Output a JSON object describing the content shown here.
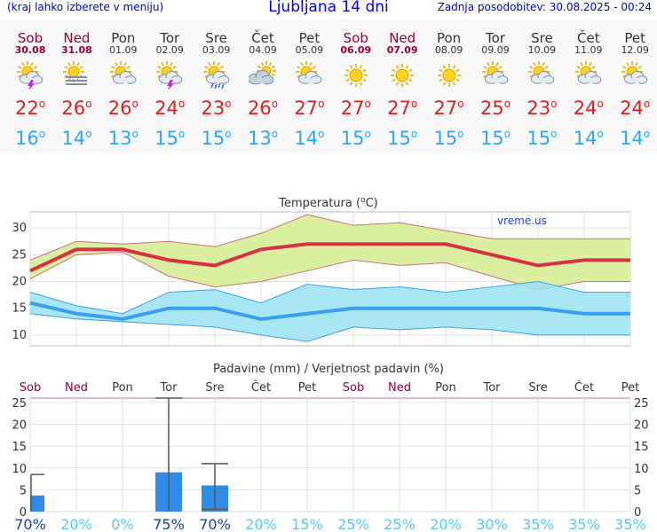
{
  "header": {
    "menu_hint": "(kraj lahko izberete v meniju)",
    "title": "Ljubljana 14 dni",
    "updated": "Zadnja posodobitev: 30.08.2025 - 00:24"
  },
  "degree_symbol": "o",
  "days": [
    {
      "name": "Sob",
      "date": "30.08",
      "weekend": true,
      "icon": "sun-cloud-thunder-icon",
      "tmax": "22",
      "tmin": "16"
    },
    {
      "name": "Ned",
      "date": "31.08",
      "weekend": true,
      "icon": "sun-fog-icon",
      "tmax": "26",
      "tmin": "14"
    },
    {
      "name": "Pon",
      "date": "01.09",
      "weekend": false,
      "icon": "sun-cloud-icon",
      "tmax": "26",
      "tmin": "13"
    },
    {
      "name": "Tor",
      "date": "02.09",
      "weekend": false,
      "icon": "sun-cloud-thunder-icon",
      "tmax": "24",
      "tmin": "15"
    },
    {
      "name": "Sre",
      "date": "03.09",
      "weekend": false,
      "icon": "sun-cloud-rain-icon",
      "tmax": "23",
      "tmin": "15"
    },
    {
      "name": "Čet",
      "date": "04.09",
      "weekend": false,
      "icon": "cloudy-icon",
      "tmax": "26",
      "tmin": "13"
    },
    {
      "name": "Pet",
      "date": "05.09",
      "weekend": false,
      "icon": "sun-cloud-icon",
      "tmax": "27",
      "tmin": "14"
    },
    {
      "name": "Sob",
      "date": "06.09",
      "weekend": true,
      "icon": "sun-icon",
      "tmax": "27",
      "tmin": "15"
    },
    {
      "name": "Ned",
      "date": "07.09",
      "weekend": true,
      "icon": "sun-icon",
      "tmax": "27",
      "tmin": "15"
    },
    {
      "name": "Pon",
      "date": "08.09",
      "weekend": false,
      "icon": "sun-icon",
      "tmax": "27",
      "tmin": "15"
    },
    {
      "name": "Tor",
      "date": "09.09",
      "weekend": false,
      "icon": "sun-cloud-icon",
      "tmax": "25",
      "tmin": "15"
    },
    {
      "name": "Sre",
      "date": "10.09",
      "weekend": false,
      "icon": "sun-cloud-icon",
      "tmax": "23",
      "tmin": "15"
    },
    {
      "name": "Čet",
      "date": "11.09",
      "weekend": false,
      "icon": "sun-cloud-icon",
      "tmax": "24",
      "tmin": "14"
    },
    {
      "name": "Pet",
      "date": "12.09",
      "weekend": false,
      "icon": "sun-cloud-icon",
      "tmax": "24",
      "tmin": "14"
    }
  ],
  "colors": {
    "max": "#e02020",
    "min": "#2aa6ff",
    "weekend": "#990033",
    "max_band": "#d4ec8e",
    "min_band": "#9be3f2",
    "max_line": "#d63245",
    "min_line": "#3a9ff0",
    "bar": "#2f8be8",
    "prob_high": "#1a3fa0",
    "prob_low": "#55c8f0"
  },
  "chart_data": [
    {
      "type": "line",
      "title": "Temperatura (°C)",
      "title_prefix": "Temperatura (",
      "title_unit": "C)",
      "watermark": "vreme.us",
      "x": [
        "30.08",
        "31.08",
        "01.09",
        "02.09",
        "03.09",
        "04.09",
        "05.09",
        "06.09",
        "07.09",
        "08.09",
        "09.09",
        "10.09",
        "11.09",
        "12.09"
      ],
      "ylim": [
        8,
        33
      ],
      "yticks": [
        10,
        15,
        20,
        25,
        30
      ],
      "series": [
        {
          "role": "max_mean",
          "values": [
            22,
            26,
            26,
            24,
            23,
            26,
            27,
            27,
            27,
            27,
            25,
            23,
            24,
            24
          ]
        },
        {
          "role": "max_upper",
          "values": [
            24,
            27.5,
            27,
            27.5,
            26.5,
            29,
            32.5,
            30.5,
            31,
            29.5,
            28,
            28,
            28,
            28
          ]
        },
        {
          "role": "max_lower",
          "values": [
            20.5,
            25,
            25.5,
            21,
            19,
            20,
            22,
            24,
            23,
            23.5,
            21,
            18.5,
            20,
            20
          ]
        },
        {
          "role": "min_mean",
          "values": [
            16,
            14,
            13,
            15,
            15,
            13,
            14,
            15,
            15,
            15,
            15,
            15,
            14,
            14
          ]
        },
        {
          "role": "min_upper",
          "values": [
            18,
            15.5,
            14,
            18,
            18.5,
            16,
            19.5,
            18.5,
            19,
            18,
            19,
            20,
            18,
            18
          ]
        },
        {
          "role": "min_lower",
          "values": [
            14,
            13,
            12.5,
            12,
            11.5,
            10,
            8.8,
            11.5,
            11,
            11.5,
            11,
            10,
            10,
            10
          ]
        }
      ],
      "grid": true
    },
    {
      "type": "bar",
      "title": "Padavine (mm) / Verjetnost padavin (%)",
      "categories": [
        "Sob",
        "Ned",
        "Pon",
        "Tor",
        "Sre",
        "Čet",
        "Pet",
        "Sob",
        "Ned",
        "Pon",
        "Tor",
        "Sre",
        "Čet",
        "Pet"
      ],
      "weekend": [
        true,
        true,
        false,
        false,
        false,
        false,
        false,
        true,
        true,
        false,
        false,
        false,
        false,
        false
      ],
      "values": [
        3.7,
        0,
        0,
        9,
        6,
        0,
        0,
        0,
        0,
        0,
        0,
        0,
        0,
        0
      ],
      "error_high": [
        8.5,
        0,
        0,
        26,
        11,
        0,
        0,
        0,
        0,
        0,
        0,
        0,
        0,
        0
      ],
      "error_low": [
        0,
        0,
        0,
        0,
        0.5,
        0,
        0,
        0,
        0,
        0,
        0,
        0,
        0,
        0
      ],
      "probability": [
        "70%",
        "20%",
        "0%",
        "75%",
        "70%",
        "20%",
        "15%",
        "25%",
        "25%",
        "20%",
        "30%",
        "35%",
        "35%",
        "35%"
      ],
      "prob_high": [
        true,
        false,
        false,
        true,
        true,
        false,
        false,
        false,
        false,
        false,
        false,
        false,
        false,
        false
      ],
      "ylim": [
        0,
        26
      ],
      "yticks": [
        0,
        5,
        10,
        15,
        20,
        25
      ],
      "grid": true
    }
  ]
}
